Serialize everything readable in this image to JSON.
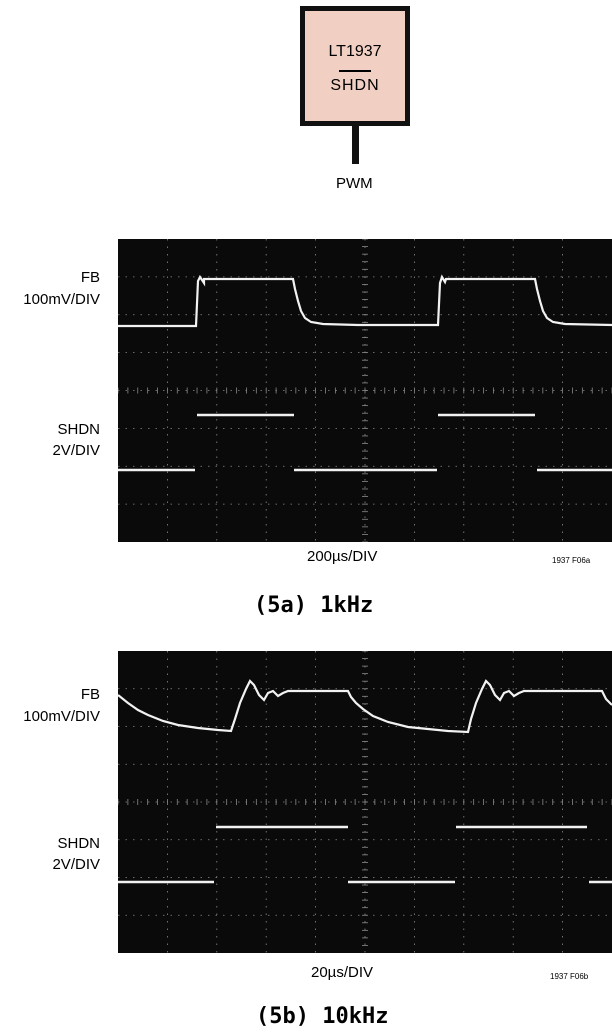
{
  "chip": {
    "part": "LT1937",
    "pin": "SHDN",
    "input": "PWM"
  },
  "scope_a": {
    "fb_label": "FB",
    "fb_scale": "100mV/DIV",
    "shdn_label": "SHDN",
    "shdn_scale": "2V/DIV",
    "time_scale": "200µs/DIV",
    "tag": "1937 F06a",
    "caption": "(5a) 1kHz"
  },
  "scope_b": {
    "fb_label": "FB",
    "fb_scale": "100mV/DIV",
    "shdn_label": "SHDN",
    "shdn_scale": "2V/DIV",
    "time_scale": "20µs/DIV",
    "tag": "1937 F06b",
    "caption": "(5b) 10kHz"
  },
  "colors": {
    "screen": "#0a0a0a",
    "trace": "#f2f2f2",
    "grid": "#8a8a8a",
    "chip_fill": "#f2cfc3"
  }
}
